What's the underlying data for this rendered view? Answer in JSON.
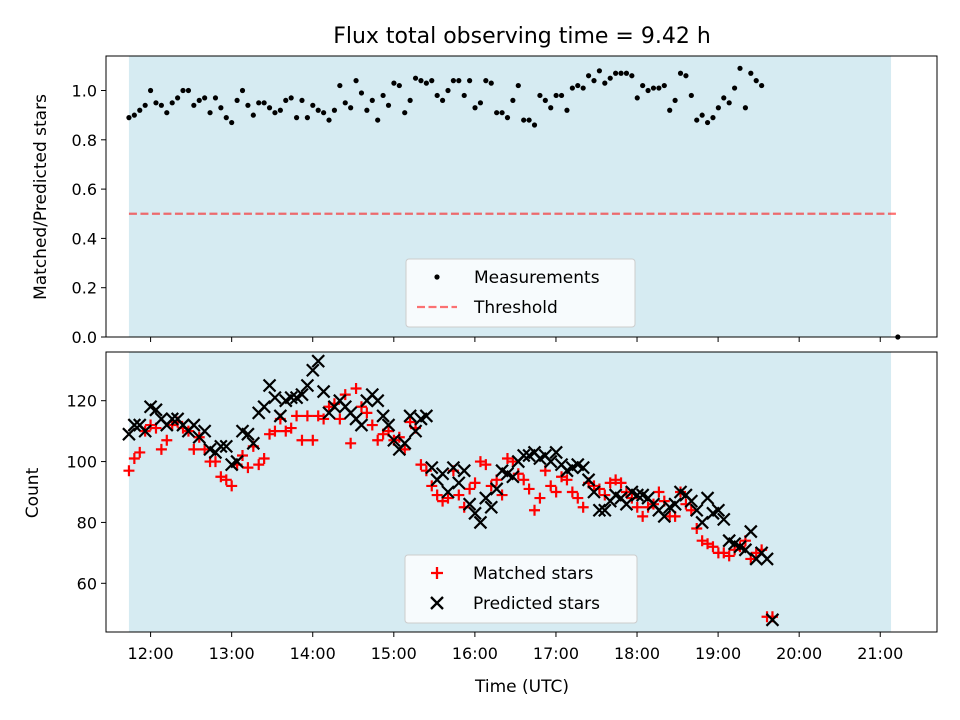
{
  "colors": {
    "band": "#add8e6",
    "matched": "#ff0000",
    "predicted": "#000000",
    "threshold": "#ff0000",
    "measurement": "#000000"
  },
  "chart_data": [
    {
      "type": "scatter",
      "title": "Flux total observing time = 9.42 h",
      "xlabel": "",
      "ylabel": "Matched/Predicted stars",
      "xlim": [
        11.45,
        21.7
      ],
      "ylim": [
        0.0,
        1.14
      ],
      "yticks": [
        "0.0",
        "0.2",
        "0.4",
        "0.6",
        "0.8",
        "1.0"
      ],
      "shaded_span": [
        11.733,
        21.133
      ],
      "threshold": {
        "y": 0.5,
        "x": [
          11.733,
          21.217
        ]
      },
      "legend": {
        "placement": "bottom-center",
        "entries": [
          "Measurements",
          "Threshold"
        ]
      },
      "series": [
        {
          "name": "Measurements",
          "x_start": 11.733,
          "x_step": 0.0667,
          "values": [
            0.89,
            0.9,
            0.92,
            0.94,
            1.0,
            0.95,
            0.94,
            0.91,
            0.95,
            0.97,
            1.0,
            1.0,
            0.94,
            0.96,
            0.97,
            0.91,
            0.97,
            0.93,
            0.89,
            0.87,
            0.96,
            1.0,
            0.94,
            0.9,
            0.95,
            0.95,
            0.93,
            0.91,
            0.92,
            0.96,
            0.97,
            0.89,
            0.96,
            0.89,
            0.94,
            0.92,
            0.91,
            0.88,
            0.92,
            1.02,
            0.95,
            0.93,
            1.04,
            0.99,
            0.92,
            0.96,
            0.88,
            0.98,
            0.94,
            1.03,
            1.02,
            0.91,
            0.96,
            1.05,
            1.04,
            1.03,
            1.04,
            0.98,
            0.96,
            1.0,
            1.04,
            1.04,
            0.98,
            1.04,
            0.93,
            0.95,
            1.04,
            1.03,
            0.91,
            0.91,
            0.89,
            0.96,
            1.02,
            0.88,
            0.88,
            0.86,
            0.98,
            0.96,
            0.93,
            0.98,
            0.98,
            0.92,
            1.01,
            1.02,
            1.01,
            1.06,
            1.04,
            1.08,
            1.03,
            1.05,
            1.07,
            1.07,
            1.07,
            1.06,
            0.97,
            1.02,
            1.0,
            1.01,
            1.01,
            1.02,
            0.92,
            0.96,
            1.07,
            1.06,
            0.98,
            0.88,
            0.9,
            0.87,
            0.89,
            0.93,
            0.97,
            0.95,
            1.01,
            1.09,
            0.93,
            1.07,
            1.04,
            1.02
          ]
        },
        {
          "name": "Measurements",
          "x": [
            21.217
          ],
          "values": [
            0.0
          ]
        }
      ]
    },
    {
      "type": "scatter",
      "title": "",
      "xlabel": "Time (UTC)",
      "ylabel": "Count",
      "xlim": [
        11.45,
        21.7
      ],
      "ylim": [
        44,
        136
      ],
      "xticks": [
        "12:00",
        "13:00",
        "14:00",
        "15:00",
        "16:00",
        "17:00",
        "18:00",
        "19:00",
        "20:00",
        "21:00"
      ],
      "yticks": [
        "60",
        "80",
        "100",
        "120"
      ],
      "shaded_span": [
        11.733,
        21.133
      ],
      "legend": {
        "placement": "bottom-center",
        "entries": [
          "Matched stars",
          "Predicted stars"
        ]
      },
      "series": [
        {
          "name": "Matched stars",
          "x_start": 11.733,
          "x_step": 0.0667,
          "values": [
            97,
            101,
            103,
            110,
            112,
            111,
            104,
            107,
            112,
            113,
            111,
            110,
            104,
            108,
            104,
            100,
            100,
            95,
            94,
            92,
            99,
            102,
            98,
            105,
            99,
            101,
            109,
            110,
            114,
            110,
            111,
            115,
            107,
            115,
            107,
            115,
            114,
            118,
            119,
            114,
            122,
            106,
            124,
            118,
            116,
            112,
            107,
            109,
            110,
            107,
            108,
            104,
            113,
            111,
            99,
            97,
            92,
            89,
            87,
            88,
            97,
            89,
            85,
            91,
            93,
            100,
            99,
            92,
            94,
            89,
            101,
            100,
            96,
            94,
            91,
            84,
            88,
            97,
            92,
            90,
            95,
            94,
            90,
            88,
            85,
            93,
            92,
            91,
            89,
            93,
            94,
            93,
            90,
            88,
            85,
            82,
            85,
            86,
            90,
            87,
            82,
            82,
            90,
            86,
            84,
            78,
            74,
            73,
            72,
            70,
            70,
            69,
            71,
            72,
            74,
            68,
            70,
            71,
            49,
            49
          ]
        },
        {
          "name": "Predicted stars",
          "x_start": 11.733,
          "x_step": 0.0667,
          "values": [
            109,
            112,
            112,
            110,
            118,
            117,
            114,
            112,
            114,
            114,
            112,
            110,
            112,
            108,
            110,
            104,
            103,
            105,
            105,
            99,
            100,
            110,
            109,
            106,
            116,
            118,
            125,
            121,
            115,
            120,
            121,
            121,
            122,
            125,
            130,
            133,
            123,
            116,
            118,
            120,
            118,
            116,
            114,
            112,
            120,
            122,
            120,
            115,
            112,
            107,
            104,
            106,
            115,
            110,
            114,
            115,
            98,
            94,
            96,
            90,
            98,
            93,
            97,
            86,
            83,
            80,
            88,
            85,
            91,
            97,
            96,
            95,
            100,
            102,
            102,
            103,
            101,
            102,
            100,
            103,
            99,
            97,
            98,
            99,
            98,
            94,
            90,
            84,
            84,
            87,
            89,
            88,
            86,
            90,
            89,
            89,
            88,
            86,
            84,
            82,
            85,
            86,
            90,
            89,
            87,
            84,
            80,
            88,
            83,
            84,
            81,
            74,
            73,
            72,
            71,
            77,
            68,
            70,
            68,
            48
          ]
        }
      ]
    }
  ]
}
